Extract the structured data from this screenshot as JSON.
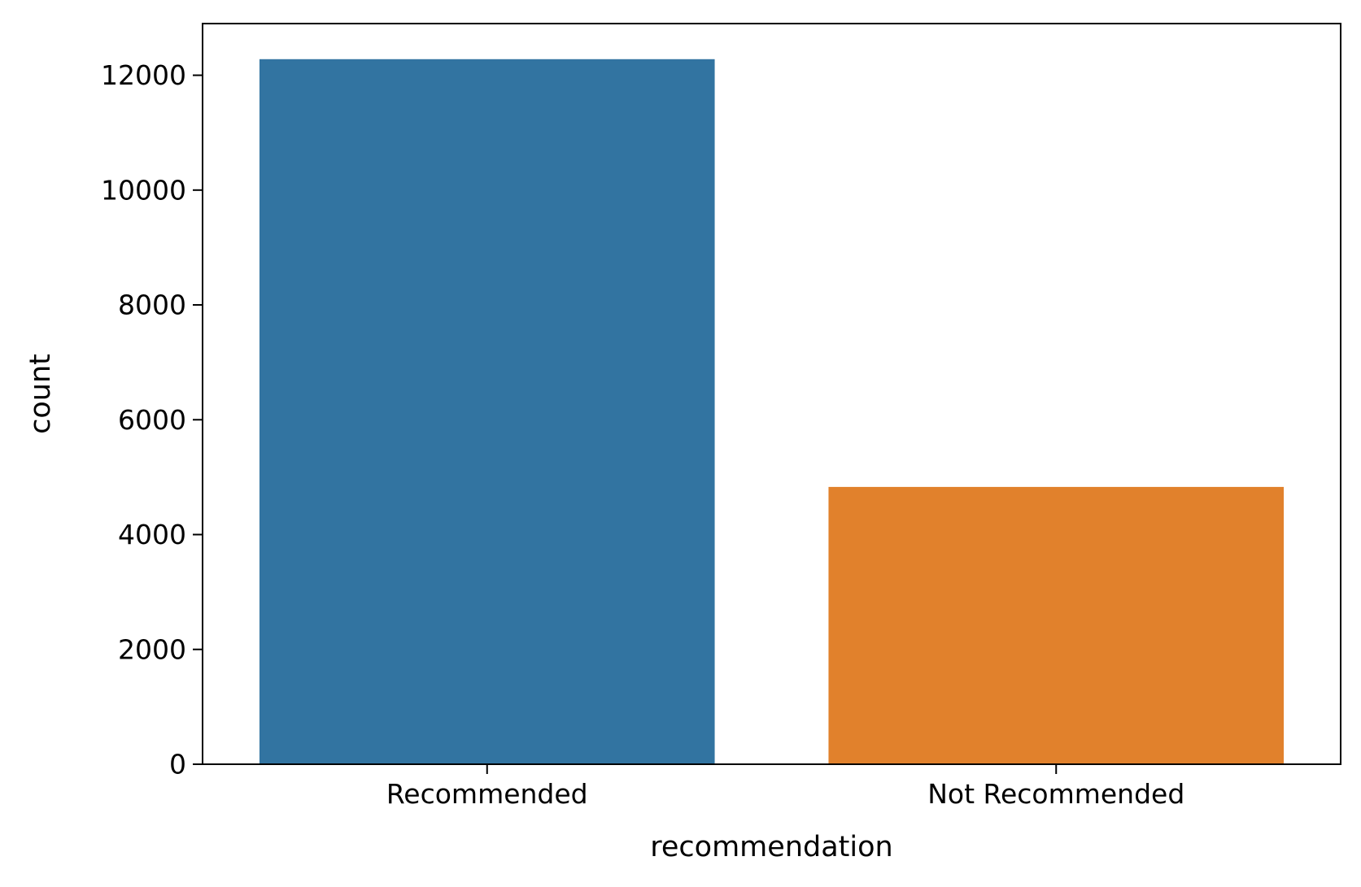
{
  "chart_data": {
    "type": "bar",
    "categories": [
      "Recommended",
      "Not Recommended"
    ],
    "values": [
      12280,
      4830
    ],
    "colors": [
      "#3274a1",
      "#e1812c"
    ],
    "xlabel": "recommendation",
    "ylabel": "count",
    "ylim": [
      0,
      12900
    ],
    "yticks": [
      0,
      2000,
      4000,
      6000,
      8000,
      10000,
      12000
    ],
    "grid": false
  }
}
